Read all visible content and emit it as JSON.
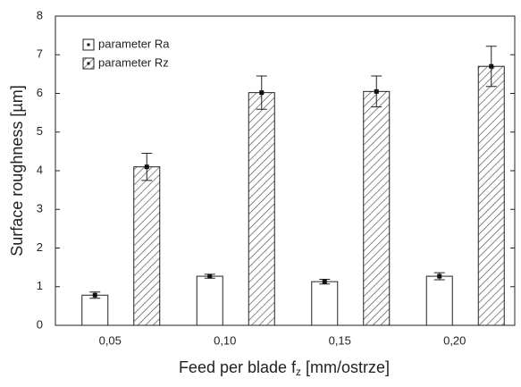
{
  "chart_data": {
    "type": "bar",
    "ylabel": "Surface roughness [µm]",
    "xlabel": {
      "text": "Feed per blade f",
      "sub": "z",
      "rest": " [mm/ostrze]"
    },
    "categories": [
      "0,05",
      "0,10",
      "0,15",
      "0,20"
    ],
    "series": [
      {
        "name": "parameter Ra",
        "color": "#ffffff",
        "pattern": "solid",
        "values": [
          0.78,
          1.27,
          1.13,
          1.27
        ],
        "errors": [
          0.08,
          0.05,
          0.06,
          0.09
        ]
      },
      {
        "name": "parameter Rz",
        "color": "#ffffff",
        "pattern": "hatched",
        "values": [
          4.1,
          6.02,
          6.05,
          6.7
        ],
        "errors": [
          0.35,
          0.43,
          0.4,
          0.52
        ]
      }
    ],
    "ylim": [
      0,
      8
    ],
    "yticks": [
      0,
      1,
      2,
      3,
      4,
      5,
      6,
      7,
      8
    ],
    "legend": "upper left"
  }
}
